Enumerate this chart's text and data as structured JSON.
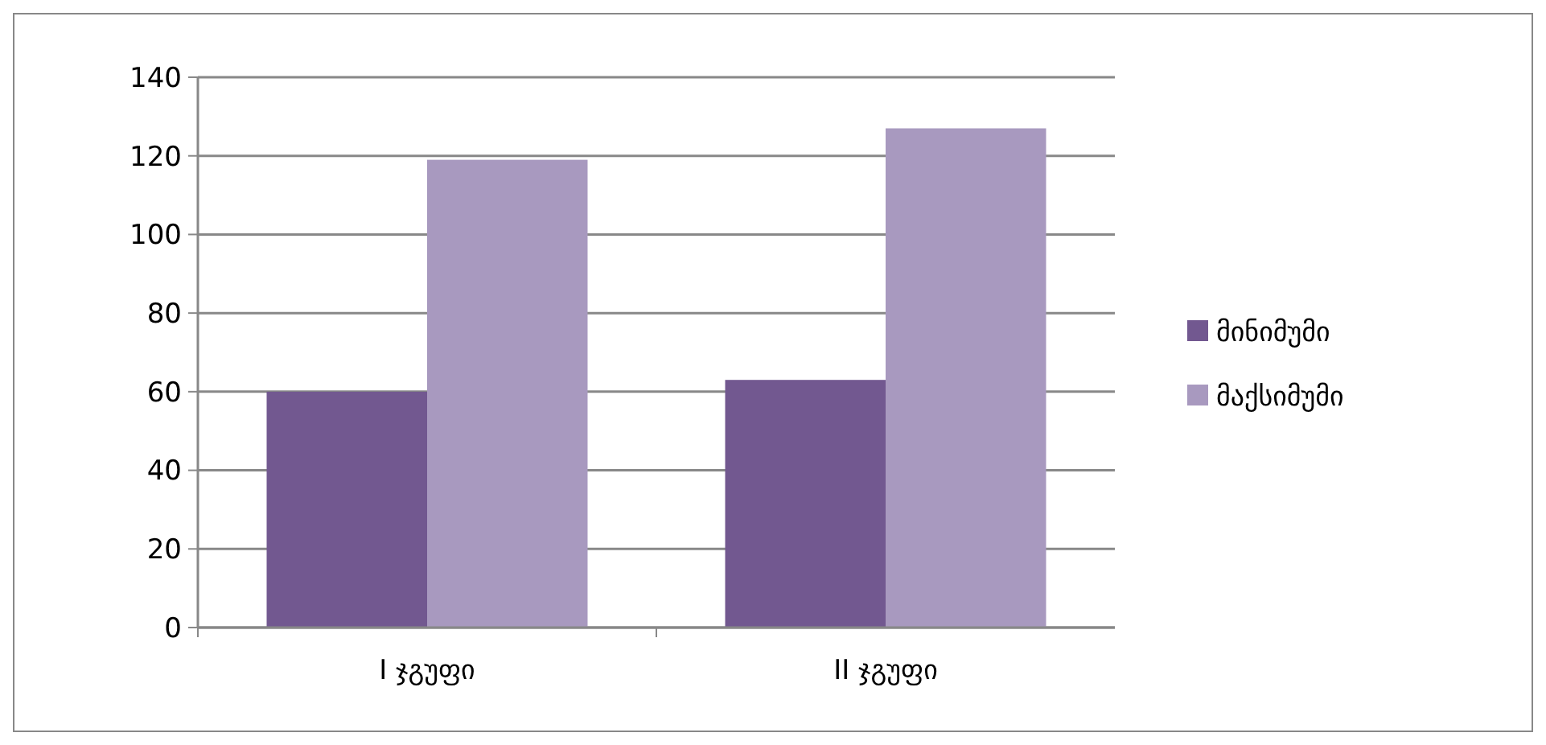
{
  "chart_data": {
    "type": "bar",
    "categories": [
      "I ჯგუფი",
      "II ჯგუფი"
    ],
    "series": [
      {
        "name": "მინიმუმი",
        "color": "#725890",
        "values": [
          60,
          63
        ]
      },
      {
        "name": "მაქსიმუმი",
        "color": "#a899bf",
        "values": [
          119,
          127
        ]
      }
    ],
    "ylim": [
      0,
      140
    ],
    "yticks": [
      0,
      20,
      40,
      60,
      80,
      100,
      120,
      140
    ],
    "grid": "y",
    "legend": "right"
  }
}
